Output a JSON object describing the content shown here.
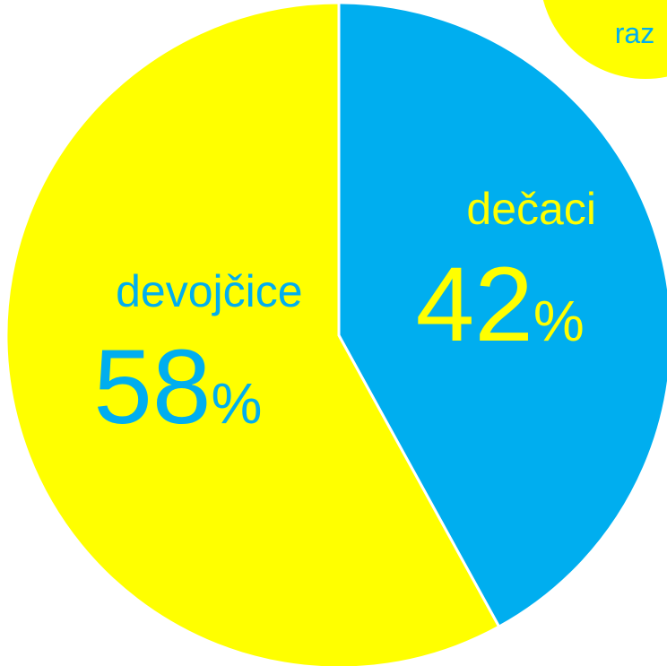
{
  "chart_data": {
    "type": "pie",
    "categories": [
      "devojčice",
      "dečaci"
    ],
    "values": [
      58,
      42
    ],
    "colors": [
      "#ffff00",
      "#00aeef"
    ],
    "unit": "%",
    "annotation": "raz"
  }
}
